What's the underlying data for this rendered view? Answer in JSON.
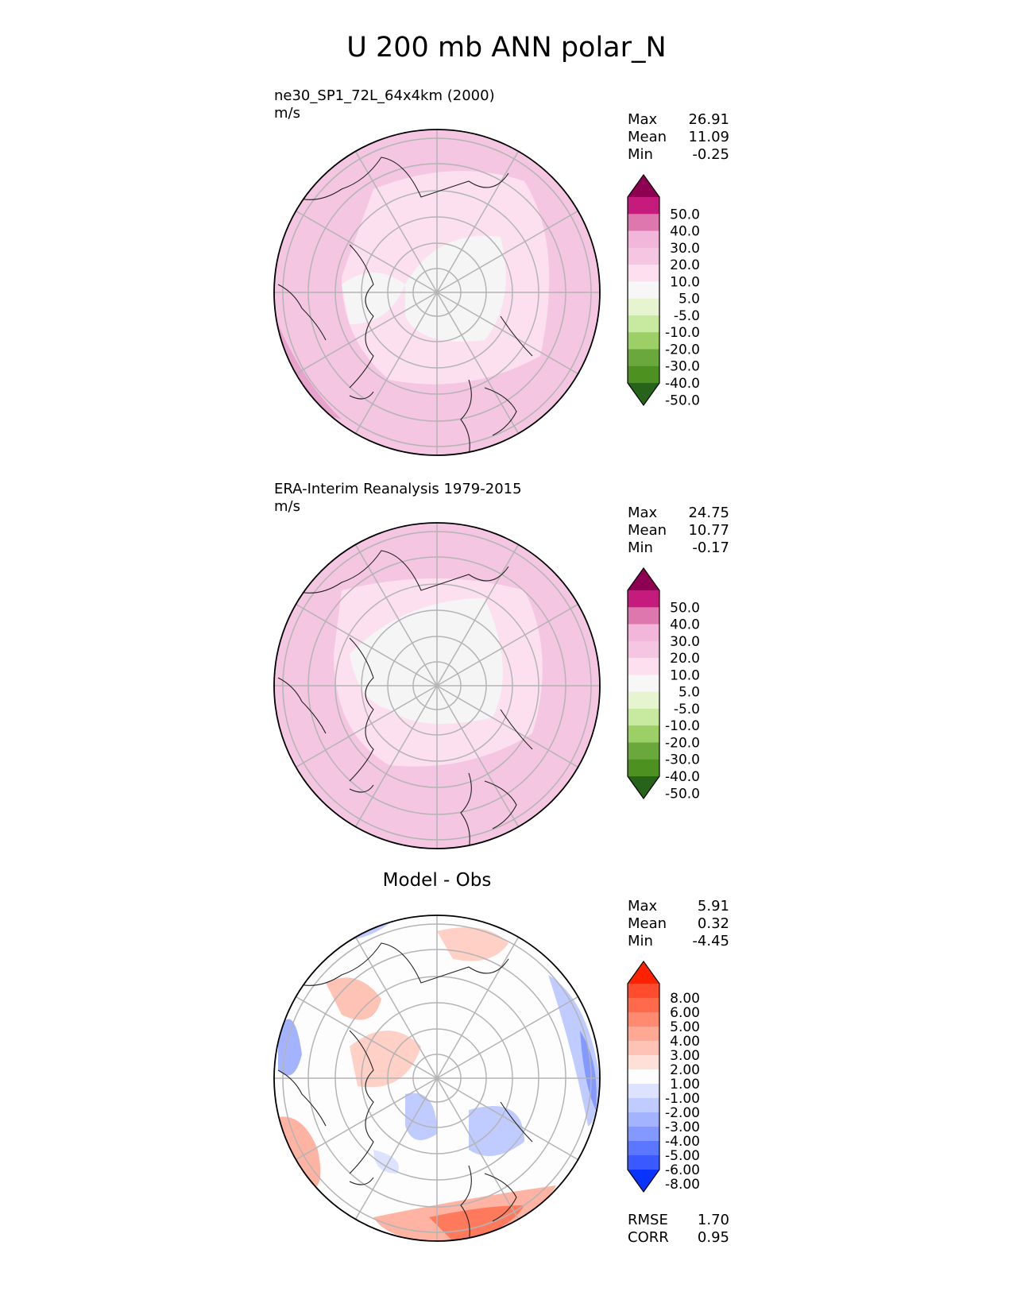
{
  "chart_data": {
    "title": "U 200 mb ANN polar_N",
    "type": "heatmap",
    "panels": [
      {
        "name": "model",
        "title_lines": [
          "ne30_SP1_72L_64x4km (2000)",
          "m/s"
        ],
        "stats": [
          {
            "label": "Max",
            "value": "26.91"
          },
          {
            "label": "Mean",
            "value": "11.09"
          },
          {
            "label": "Min",
            "value": "-0.25"
          }
        ],
        "colorbar": {
          "tick_labels": [
            "50.0",
            "40.0",
            "30.0",
            "20.0",
            "10.0",
            "5.0",
            "-5.0",
            "-10.0",
            "-20.0",
            "-30.0",
            "-40.0",
            "-50.0"
          ],
          "colors": [
            "#8e0152",
            "#c51b7d",
            "#de77ae",
            "#f1b6da",
            "#f4c6e2",
            "#fde0ef",
            "#f7f7f7",
            "#e6f5d0",
            "#c7e9a0",
            "#9cd067",
            "#6aa83e",
            "#4d9221",
            "#276419"
          ],
          "extend": "both"
        }
      },
      {
        "name": "obs",
        "title_lines": [
          "ERA-Interim Reanalysis 1979-2015",
          "m/s"
        ],
        "stats": [
          {
            "label": "Max",
            "value": "24.75"
          },
          {
            "label": "Mean",
            "value": "10.77"
          },
          {
            "label": "Min",
            "value": "-0.17"
          }
        ],
        "colorbar": {
          "tick_labels": [
            "50.0",
            "40.0",
            "30.0",
            "20.0",
            "10.0",
            "5.0",
            "-5.0",
            "-10.0",
            "-20.0",
            "-30.0",
            "-40.0",
            "-50.0"
          ],
          "colors": [
            "#8e0152",
            "#c51b7d",
            "#de77ae",
            "#f1b6da",
            "#f4c6e2",
            "#fde0ef",
            "#f7f7f7",
            "#e6f5d0",
            "#c7e9a0",
            "#9cd067",
            "#6aa83e",
            "#4d9221",
            "#276419"
          ],
          "extend": "both"
        }
      },
      {
        "name": "diff",
        "title_lines": [
          "Model - Obs"
        ],
        "stats": [
          {
            "label": "Max",
            "value": "5.91"
          },
          {
            "label": "Mean",
            "value": "0.32"
          },
          {
            "label": "Min",
            "value": "-4.45"
          }
        ],
        "extra_stats": [
          {
            "label": "RMSE",
            "value": "1.70"
          },
          {
            "label": "CORR",
            "value": "0.95"
          }
        ],
        "colorbar": {
          "tick_labels": [
            "8.00",
            "6.00",
            "5.00",
            "4.00",
            "3.00",
            "2.00",
            "1.00",
            "-1.00",
            "-2.00",
            "-3.00",
            "-4.00",
            "-5.00",
            "-6.00",
            "-8.00"
          ],
          "colors": [
            "#ff2200",
            "#ff4c2e",
            "#ff6a4d",
            "#ff8a70",
            "#ffa894",
            "#ffc3b5",
            "#ffe0d8",
            "#fdfdfd",
            "#dde3ff",
            "#c0ccff",
            "#a3b3ff",
            "#8499ff",
            "#5b77ff",
            "#3a5aff",
            "#0a33ff"
          ],
          "extend": "both"
        }
      }
    ]
  }
}
